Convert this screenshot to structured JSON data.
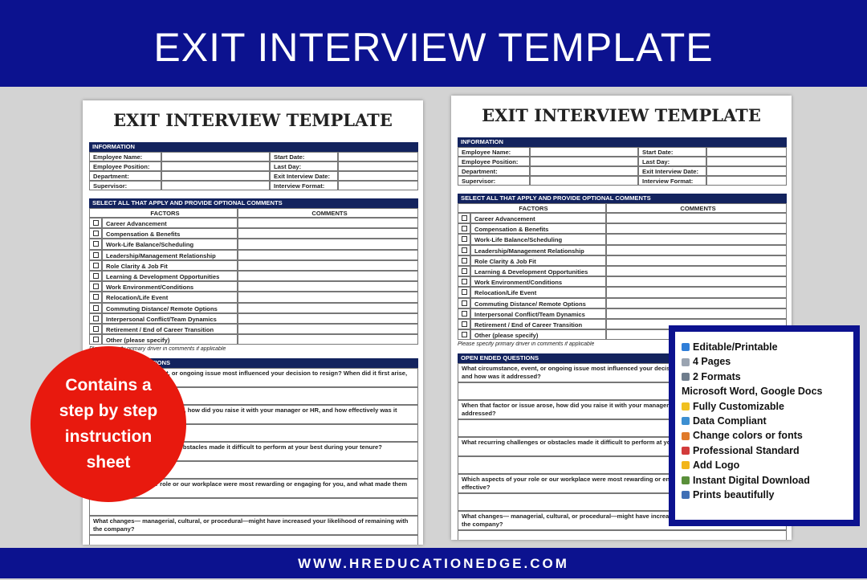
{
  "header": {
    "title": "EXIT INTERVIEW TEMPLATE"
  },
  "document": {
    "title": "EXIT INTERVIEW TEMPLATE",
    "info_heading": "INFORMATION",
    "info_left": [
      "Employee Name:",
      "Employee Position:",
      "Department:",
      "Supervisor:"
    ],
    "info_right": [
      "Start Date:",
      "Last Day:",
      "Exit Interview Date:",
      "Interview Format:"
    ],
    "factors_heading": "SELECT ALL THAT APPLY AND PROVIDE OPTIONAL COMMENTS",
    "factors_column": "FACTORS",
    "comments_column": "COMMENTS",
    "factors": [
      "Career Advancement",
      "Compensation & Benefits",
      "Work-Life Balance/Scheduling",
      "Leadership/Management Relationship",
      "Role Clarity & Job Fit",
      "Learning & Development Opportunities",
      "Work Environment/Conditions",
      "Relocation/Life Event",
      "Commuting Distance/ Remote Options",
      "Interpersonal Conflict/Team Dynamics",
      "Retirement / End of Career Transition",
      "Other (please specify)"
    ],
    "factors_note": "Please specify primary driver in comments if applicable",
    "questions_heading": "OPEN ENDED QUESTIONS",
    "questions": [
      "What circumstance, event, or ongoing issue most influenced your decision to resign? When did it first arise, and how was it addressed?",
      "When that factor or issue arose, how did you raise it with your manager or HR, and how effectively was it addressed?",
      "What recurring challenges or obstacles made it difficult to perform at your best during your tenure?",
      "Which aspects of your role or our workplace were most rewarding or engaging for you, and what made them effective?",
      "What changes— managerial, cultural, or procedural—might have increased your likelihood of remaining with the company?"
    ]
  },
  "badge": {
    "text": "Contains a step by step instruction sheet"
  },
  "features": [
    "Editable/Printable",
    "4 Pages",
    "2 Formats",
    "Microsoft Word, Google Docs",
    "Fully Customizable",
    "Data Compliant",
    "Change colors or fonts",
    "Professional Standard",
    "Add Logo",
    "Instant Digital Download",
    "Prints beautifully"
  ],
  "footer": {
    "url": "WWW.HREDUCATIONEDGE.COM"
  }
}
